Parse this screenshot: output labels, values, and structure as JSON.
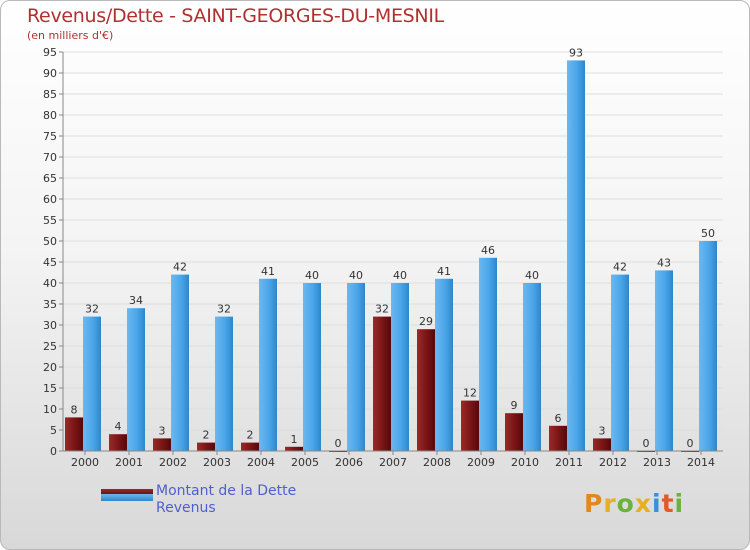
{
  "header": {
    "title": "Revenus/Dette - SAINT-GEORGES-DU-MESNIL",
    "subtitle": "(en milliers d'€)"
  },
  "legend": {
    "dette_label": "Montant de la Dette",
    "revenus_label": "Revenus"
  },
  "logo": {
    "text": "Proxiti"
  },
  "colors": {
    "dette": "#7a1414",
    "revenus": "#3f9ae0",
    "title": "#b03030",
    "legend_text": "#4f5fcf"
  },
  "chart_data": {
    "type": "bar",
    "categories": [
      "2000",
      "2001",
      "2002",
      "2003",
      "2004",
      "2005",
      "2006",
      "2007",
      "2008",
      "2009",
      "2010",
      "2011",
      "2012",
      "2013",
      "2014"
    ],
    "series": [
      {
        "name": "Montant de la Dette",
        "values": [
          8,
          4,
          3,
          2,
          2,
          1,
          0,
          32,
          29,
          12,
          9,
          6,
          3,
          0,
          0
        ]
      },
      {
        "name": "Revenus",
        "values": [
          32,
          34,
          42,
          32,
          41,
          40,
          40,
          40,
          41,
          46,
          40,
          93,
          42,
          43,
          50
        ]
      }
    ],
    "title": "Revenus/Dette - SAINT-GEORGES-DU-MESNIL",
    "ylabel": "(en milliers d'€)",
    "ylim": [
      0,
      95
    ],
    "ytick_step": 5,
    "grid": true,
    "legend_position": "bottom-left"
  }
}
